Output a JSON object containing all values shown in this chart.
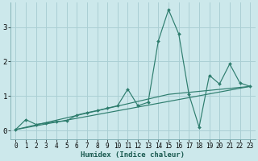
{
  "xlabel": "Humidex (Indice chaleur)",
  "bg_color": "#cce8eb",
  "grid_color": "#aacfd4",
  "line_color": "#2e7d6e",
  "xlim": [
    -0.5,
    23.5
  ],
  "ylim": [
    -0.25,
    3.7
  ],
  "xticks": [
    0,
    1,
    2,
    3,
    4,
    5,
    6,
    7,
    8,
    9,
    10,
    11,
    12,
    13,
    14,
    15,
    16,
    17,
    18,
    19,
    20,
    21,
    22,
    23
  ],
  "yticks": [
    0,
    1,
    2,
    3
  ],
  "series1_x": [
    0,
    1,
    2,
    3,
    4,
    5,
    6,
    7,
    8,
    9,
    10,
    11,
    12,
    13,
    14,
    15,
    16,
    17,
    18,
    19,
    20,
    21,
    22,
    23
  ],
  "series1_y": [
    0.03,
    0.32,
    0.18,
    0.22,
    0.26,
    0.28,
    0.45,
    0.52,
    0.58,
    0.65,
    0.72,
    1.2,
    0.72,
    0.82,
    2.6,
    3.5,
    2.8,
    1.05,
    0.1,
    1.6,
    1.35,
    1.93,
    1.38,
    1.28
  ],
  "series2_x": [
    0,
    23
  ],
  "series2_y": [
    0.03,
    1.28
  ],
  "series3_x": [
    0,
    15,
    23
  ],
  "series3_y": [
    0.03,
    1.05,
    1.28
  ]
}
